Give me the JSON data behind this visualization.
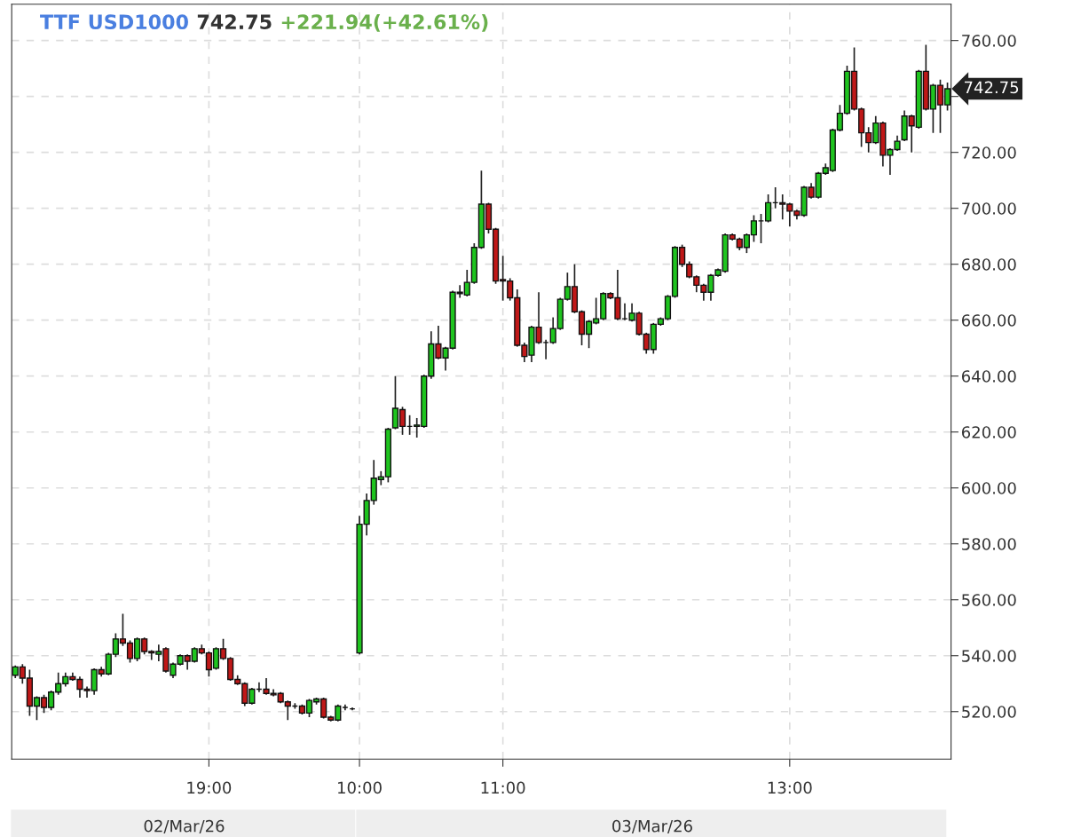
{
  "chart_data": {
    "type": "candlestick",
    "title": "TTF USD1000",
    "subtitle": "742.75",
    "categories": [
      null,
      null,
      null,
      null,
      null,
      null,
      null,
      null,
      null,
      null,
      null,
      null,
      null,
      null,
      null,
      null,
      null,
      null,
      null,
      null,
      null,
      null,
      null,
      null,
      null,
      null,
      null,
      "19:00",
      null,
      null,
      null,
      null,
      null,
      null,
      null,
      null,
      null,
      null,
      null,
      null,
      null,
      null,
      null,
      null,
      null,
      null,
      null,
      null,
      "10:00",
      null,
      null,
      null,
      null,
      null,
      null,
      null,
      null,
      null,
      null,
      null,
      null,
      null,
      null,
      null,
      null,
      null,
      null,
      null,
      "11:00",
      null,
      null,
      null,
      null,
      null,
      null,
      null,
      null,
      null,
      null,
      null,
      null,
      null,
      null,
      null,
      null,
      null,
      null,
      null,
      null,
      null,
      null,
      null,
      null,
      null,
      null,
      null,
      null,
      null,
      null,
      null,
      null,
      null,
      null,
      null,
      null,
      null,
      null,
      null,
      "13:00",
      null,
      null,
      null,
      null,
      null,
      null,
      null,
      null,
      null,
      null,
      null,
      null,
      null,
      null,
      null,
      null,
      null,
      null,
      null,
      null,
      null,
      null
    ],
    "ohlc": [
      [
        533,
        536.5,
        532,
        536
      ],
      [
        536,
        537,
        530,
        532
      ],
      [
        532,
        535,
        518.5,
        522
      ],
      [
        522,
        525.5,
        517,
        525
      ],
      [
        525,
        526,
        519.5,
        521.5
      ],
      [
        521.5,
        527.5,
        520.5,
        527
      ],
      [
        527,
        534,
        526,
        530
      ],
      [
        530,
        534,
        529,
        532.5
      ],
      [
        532.5,
        534,
        531,
        531.5
      ],
      [
        531.5,
        532.5,
        525,
        528
      ],
      [
        528,
        529,
        525,
        527.5
      ],
      [
        527.5,
        535.5,
        526,
        535
      ],
      [
        535,
        536,
        532.5,
        533.5
      ],
      [
        533.5,
        541,
        533,
        540.5
      ],
      [
        540.5,
        548,
        539.5,
        546
      ],
      [
        546,
        555,
        543.5,
        544.5
      ],
      [
        544.5,
        545.5,
        537.5,
        539
      ],
      [
        539,
        546.5,
        538,
        546
      ],
      [
        546,
        546.5,
        540.5,
        541.5
      ],
      [
        541.5,
        542,
        538.5,
        541
      ],
      [
        540.5,
        544,
        538,
        541.5
      ],
      [
        542.5,
        543,
        534,
        534.5
      ],
      [
        533,
        537.5,
        532,
        537
      ],
      [
        537,
        540.5,
        536.5,
        540
      ],
      [
        540,
        540.5,
        535,
        538
      ],
      [
        538,
        543,
        537.5,
        542.5
      ],
      [
        542.5,
        544,
        540.5,
        541
      ],
      [
        541,
        541.5,
        532.5,
        535
      ],
      [
        535.5,
        543,
        535,
        542.5
      ],
      [
        542.5,
        546,
        538.5,
        539
      ],
      [
        539,
        539.5,
        531,
        531.5
      ],
      [
        531.5,
        533,
        529.5,
        530
      ],
      [
        530,
        530.5,
        522,
        523
      ],
      [
        523,
        528.5,
        522.5,
        528
      ],
      [
        528,
        530.5,
        527,
        528
      ],
      [
        528,
        532,
        526,
        526.5
      ],
      [
        526.5,
        528,
        525.5,
        526
      ],
      [
        526.5,
        527,
        523,
        523.5
      ],
      [
        523.5,
        524,
        517,
        522
      ],
      [
        522,
        523,
        521,
        522
      ],
      [
        522,
        522.5,
        519,
        519.5
      ],
      [
        519.5,
        524.5,
        518,
        524
      ],
      [
        523.5,
        525,
        522.5,
        524.5
      ],
      [
        524.5,
        525,
        517.5,
        518
      ],
      [
        518,
        518.5,
        516.5,
        517
      ],
      [
        517,
        522.5,
        516.5,
        522
      ],
      [
        521.5,
        522.5,
        520.5,
        521.5
      ],
      [
        521,
        521.5,
        520.5,
        521
      ],
      [
        541,
        590,
        540.5,
        587
      ],
      [
        587,
        598,
        583,
        595.5
      ],
      [
        595.5,
        610,
        594,
        603.5
      ],
      [
        603,
        606,
        601,
        604
      ],
      [
        604,
        621.5,
        602,
        621
      ],
      [
        621.5,
        640,
        621,
        628.5
      ],
      [
        628,
        629,
        619,
        622
      ],
      [
        622,
        626,
        619,
        622
      ],
      [
        622,
        625,
        618,
        622.5
      ],
      [
        622,
        640.5,
        621.5,
        640
      ],
      [
        640,
        656,
        639,
        651.5
      ],
      [
        651.5,
        658,
        646,
        646.5
      ],
      [
        646.5,
        650.5,
        642,
        650
      ],
      [
        650,
        670.5,
        649.5,
        670
      ],
      [
        670,
        672.5,
        668,
        669.5
      ],
      [
        669,
        678,
        668.5,
        673.5
      ],
      [
        673.5,
        687.5,
        673,
        686
      ],
      [
        686,
        713.5,
        685.5,
        701.5
      ],
      [
        701.5,
        702,
        691,
        692.5
      ],
      [
        692.5,
        693,
        673,
        674
      ],
      [
        674.5,
        683,
        667,
        674
      ],
      [
        674,
        675,
        667,
        668
      ],
      [
        668,
        671,
        650.5,
        651
      ],
      [
        651,
        652,
        645,
        647
      ],
      [
        647.5,
        658,
        645,
        657.5
      ],
      [
        657.5,
        670,
        651.5,
        652
      ],
      [
        652,
        653,
        646,
        652
      ],
      [
        652,
        661,
        651.5,
        657
      ],
      [
        657,
        668,
        656.5,
        667.5
      ],
      [
        667.5,
        677,
        667,
        672
      ],
      [
        672,
        680,
        662.5,
        663
      ],
      [
        663,
        663.5,
        651,
        655
      ],
      [
        655,
        660,
        650,
        659.5
      ],
      [
        659,
        668,
        658.5,
        660.5
      ],
      [
        660.5,
        670,
        660,
        669.5
      ],
      [
        669.5,
        670,
        667.5,
        668
      ],
      [
        668,
        678,
        660,
        660.5
      ],
      [
        660.5,
        666,
        660,
        660.5
      ],
      [
        660,
        666,
        659.5,
        662.5
      ],
      [
        662.5,
        663,
        654.5,
        655
      ],
      [
        655,
        655.5,
        648,
        649.5
      ],
      [
        649.5,
        659,
        648,
        658.5
      ],
      [
        658.5,
        661,
        658,
        660.5
      ],
      [
        660.5,
        669,
        660,
        668.5
      ],
      [
        668.5,
        686.5,
        668,
        686
      ],
      [
        686,
        687,
        679,
        680
      ],
      [
        680,
        681,
        675,
        675.5
      ],
      [
        675.5,
        676,
        670,
        672.5
      ],
      [
        672.5,
        673,
        667,
        670
      ],
      [
        670,
        676.5,
        667,
        676
      ],
      [
        676,
        678.5,
        675.5,
        678
      ],
      [
        677.5,
        691,
        677,
        690.5
      ],
      [
        690.5,
        691,
        688.5,
        689
      ],
      [
        689,
        689.5,
        685,
        686
      ],
      [
        686,
        691,
        684,
        690.5
      ],
      [
        690.5,
        697.5,
        688,
        695.5
      ],
      [
        695.5,
        698,
        687.5,
        695.5
      ],
      [
        695.5,
        705,
        695,
        702
      ],
      [
        702,
        707.5,
        700,
        702
      ],
      [
        702,
        705,
        696,
        701.5
      ],
      [
        701.5,
        702,
        693.5,
        699
      ],
      [
        699,
        699.5,
        696,
        697.5
      ],
      [
        697.5,
        708,
        697,
        707.5
      ],
      [
        707.5,
        709,
        703.5,
        704
      ],
      [
        704,
        713,
        703.5,
        712.5
      ],
      [
        712.5,
        716,
        712,
        714.5
      ],
      [
        713.5,
        728.5,
        713,
        728
      ],
      [
        728,
        737,
        727.5,
        734
      ],
      [
        734,
        751,
        733.5,
        749
      ],
      [
        749,
        757.5,
        735,
        735.5
      ],
      [
        735.5,
        736,
        722,
        727
      ],
      [
        727,
        729,
        720,
        723.5
      ],
      [
        723.5,
        733,
        723,
        730.5
      ],
      [
        730.5,
        731,
        715,
        719
      ],
      [
        719,
        721.5,
        712,
        721
      ],
      [
        721,
        726,
        720.5,
        724
      ],
      [
        724.5,
        735,
        724,
        733
      ],
      [
        733,
        733.5,
        720,
        729.5
      ],
      [
        729,
        749.5,
        728.5,
        749
      ],
      [
        749,
        758.5,
        735,
        735.5
      ],
      [
        735.5,
        744.5,
        727,
        744
      ],
      [
        744,
        746,
        727,
        737
      ],
      [
        737,
        745,
        735,
        742.75
      ]
    ],
    "ylim": [
      503,
      773
    ],
    "yticks": [
      {
        "value": 520,
        "label": "520.00"
      },
      {
        "value": 540,
        "label": "540.00"
      },
      {
        "value": 560,
        "label": "560.00"
      },
      {
        "value": 580,
        "label": "580.00"
      },
      {
        "value": 600,
        "label": "600.00"
      },
      {
        "value": 620,
        "label": "620.00"
      },
      {
        "value": 640,
        "label": "640.00"
      },
      {
        "value": 660,
        "label": "660.00"
      },
      {
        "value": 680,
        "label": "680.00"
      },
      {
        "value": 700,
        "label": "700.00"
      },
      {
        "value": 720,
        "label": "720.00"
      },
      {
        "value": 740,
        "label": null
      },
      {
        "value": 760,
        "label": "760.00"
      }
    ],
    "grid": true,
    "annotations": [
      "+221.94(+42.61%)",
      "742.75",
      "02/Mar/26",
      "03/Mar/26"
    ]
  }
}
